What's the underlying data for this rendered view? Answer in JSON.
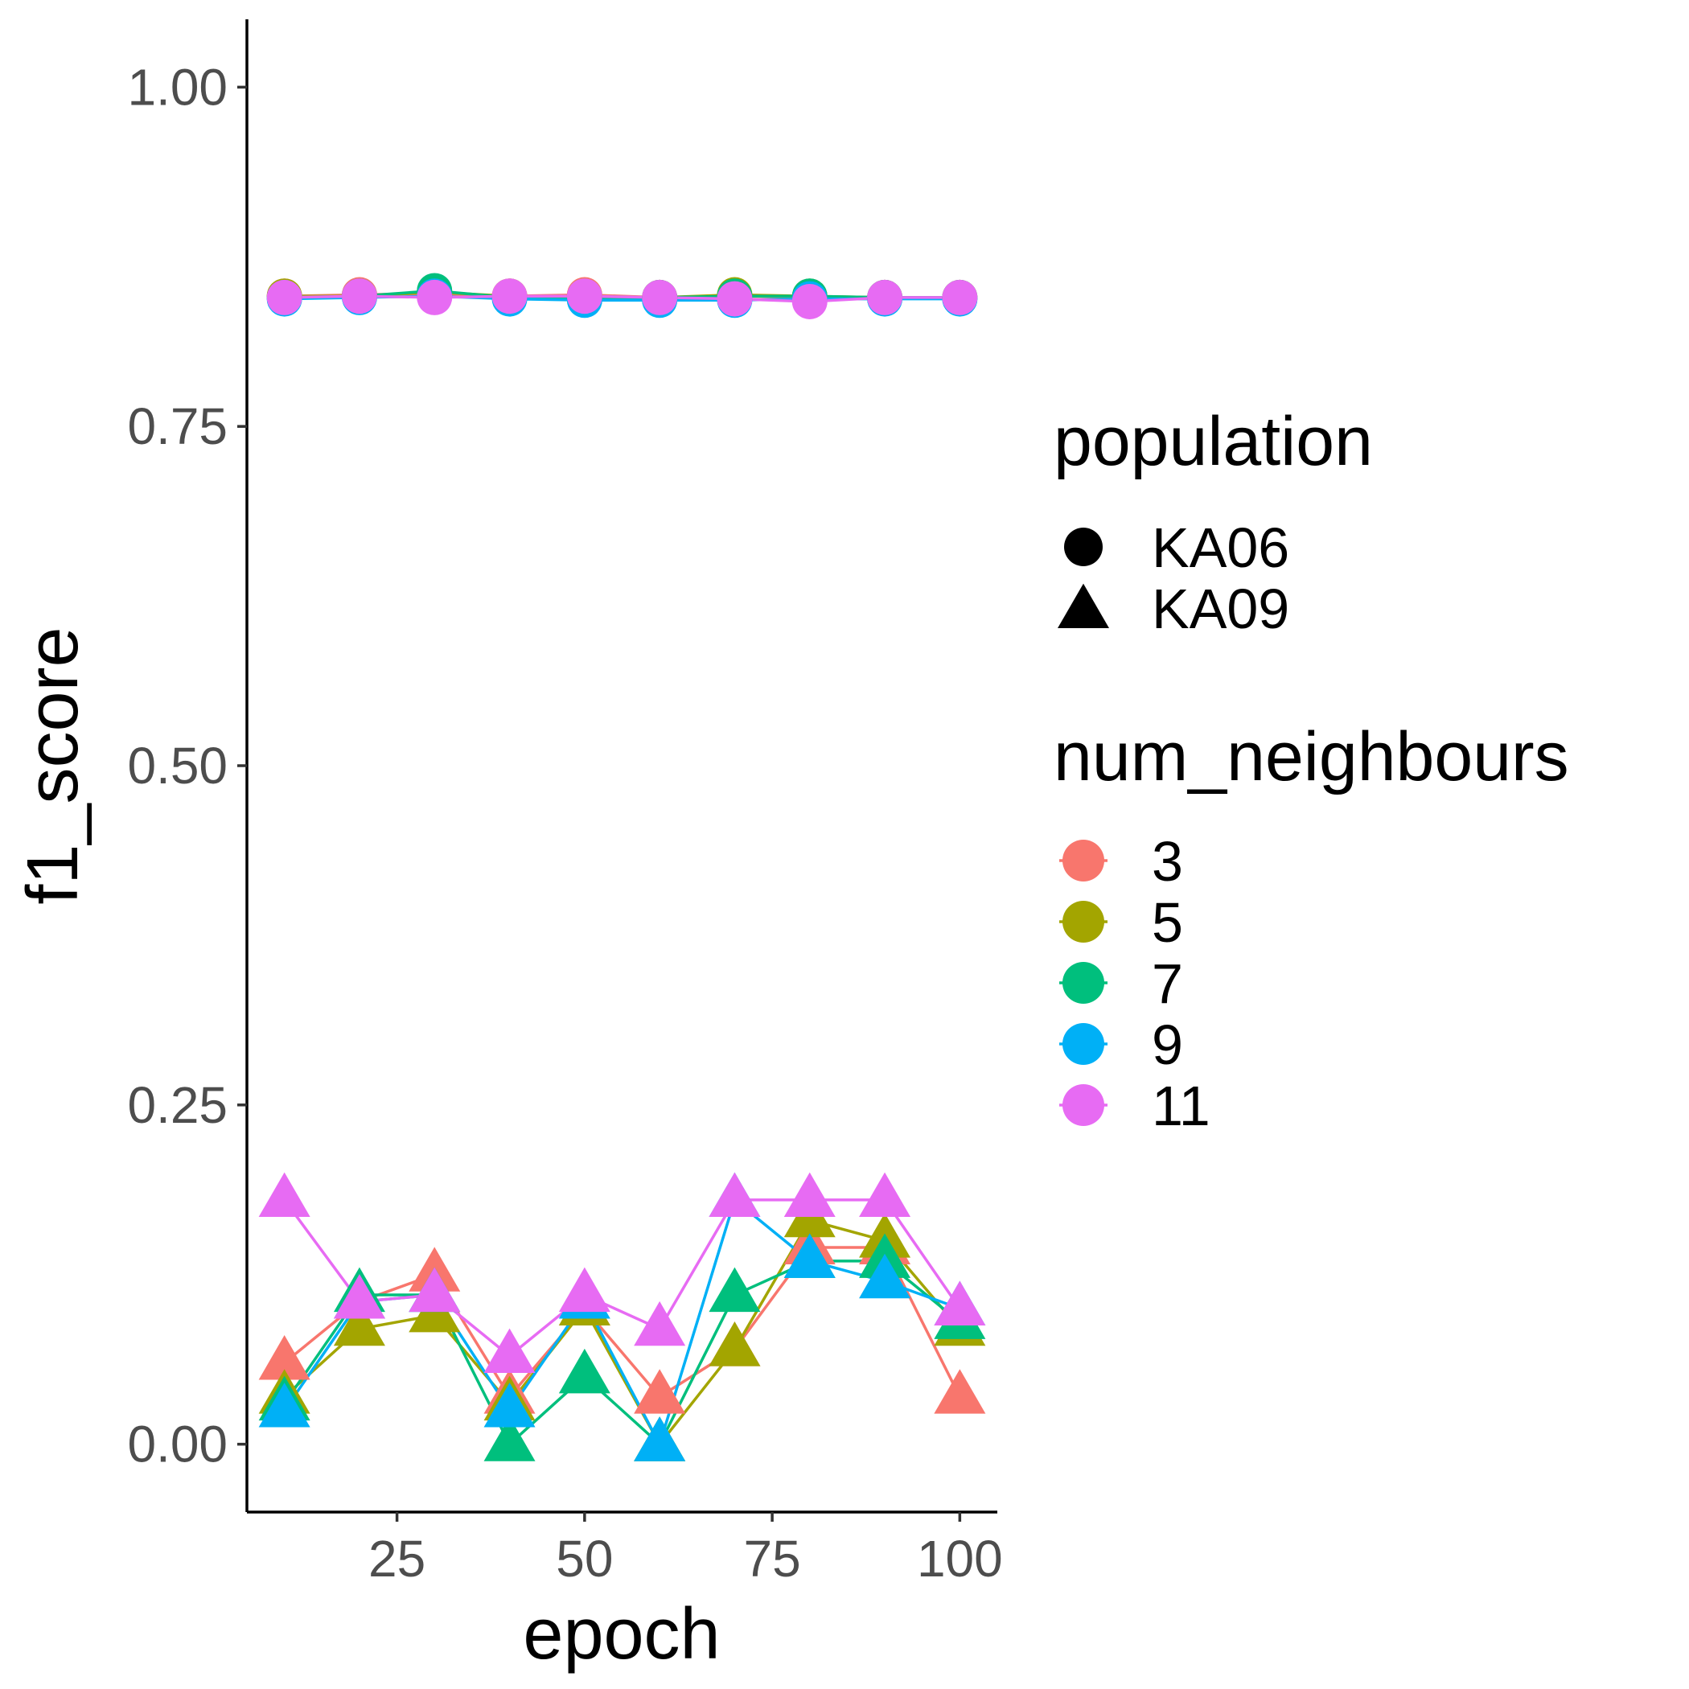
{
  "chart_data": {
    "type": "line",
    "xlabel": "epoch",
    "ylabel": "f1_score",
    "xlim": [
      5,
      105
    ],
    "ylim": [
      -0.05,
      1.05
    ],
    "x_ticks": [
      "25",
      "50",
      "75",
      "100"
    ],
    "y_ticks": [
      "0.00",
      "0.25",
      "0.50",
      "0.75",
      "1.00"
    ],
    "grid": false,
    "legend_placement": "right",
    "x": [
      10,
      20,
      30,
      40,
      50,
      60,
      70,
      80,
      90,
      100
    ],
    "shape_legend": {
      "title": "population",
      "entries": [
        {
          "label": "KA06",
          "shape": "circle"
        },
        {
          "label": "KA09",
          "shape": "triangle"
        }
      ]
    },
    "color_legend": {
      "title": "num_neighbours",
      "entries": [
        {
          "label": "3",
          "color": "#F8766D"
        },
        {
          "label": "5",
          "color": "#A3A500"
        },
        {
          "label": "7",
          "color": "#00BF7D"
        },
        {
          "label": "9",
          "color": "#00B0F6"
        },
        {
          "label": "11",
          "color": "#E76BF3"
        }
      ]
    },
    "series": [
      {
        "population": "KA06",
        "num_neighbours": "3",
        "values": [
          0.846,
          0.847,
          0.848,
          0.846,
          0.847,
          0.845,
          0.846,
          0.845,
          0.845,
          0.845
        ]
      },
      {
        "population": "KA06",
        "num_neighbours": "5",
        "values": [
          0.846,
          0.846,
          0.849,
          0.846,
          0.846,
          0.845,
          0.847,
          0.846,
          0.845,
          0.845
        ]
      },
      {
        "population": "KA06",
        "num_neighbours": "7",
        "values": [
          0.845,
          0.846,
          0.85,
          0.845,
          0.844,
          0.845,
          0.846,
          0.846,
          0.845,
          0.845
        ]
      },
      {
        "population": "KA06",
        "num_neighbours": "9",
        "values": [
          0.844,
          0.845,
          0.846,
          0.844,
          0.843,
          0.843,
          0.843,
          0.844,
          0.844,
          0.844
        ]
      },
      {
        "population": "KA06",
        "num_neighbours": "11",
        "values": [
          0.845,
          0.846,
          0.845,
          0.846,
          0.846,
          0.845,
          0.844,
          0.842,
          0.845,
          0.845
        ]
      },
      {
        "population": "KA09",
        "num_neighbours": "3",
        "values": [
          0.06,
          0.105,
          0.125,
          0.035,
          0.1,
          0.035,
          0.07,
          0.145,
          0.145,
          0.035
        ]
      },
      {
        "population": "KA09",
        "num_neighbours": "5",
        "values": [
          0.035,
          0.085,
          0.095,
          0.03,
          0.1,
          0.0,
          0.07,
          0.165,
          0.15,
          0.085
        ]
      },
      {
        "population": "KA09",
        "num_neighbours": "7",
        "values": [
          0.03,
          0.11,
          0.11,
          0.0,
          0.05,
          0.0,
          0.11,
          0.135,
          0.135,
          0.09
        ]
      },
      {
        "population": "KA09",
        "num_neighbours": "9",
        "values": [
          0.025,
          0.105,
          0.11,
          0.025,
          0.105,
          0.0,
          0.18,
          0.135,
          0.12,
          0.1
        ]
      },
      {
        "population": "KA09",
        "num_neighbours": "11",
        "values": [
          0.18,
          0.105,
          0.11,
          0.065,
          0.11,
          0.085,
          0.18,
          0.18,
          0.18,
          0.1
        ]
      }
    ]
  }
}
